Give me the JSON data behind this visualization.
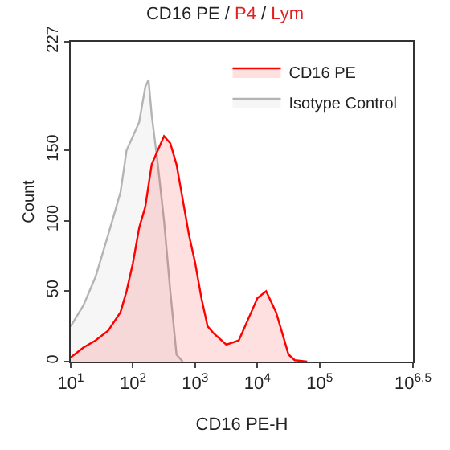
{
  "chart_data": {
    "type": "area",
    "title": "CD16 PE / P4 / Lym",
    "xlabel": "CD16 PE-H",
    "ylabel": "Count",
    "log": "x",
    "xlim": [
      10,
      3162278
    ],
    "ylim": [
      0,
      227
    ],
    "xticks": [
      {
        "value": 10,
        "label": "10$^{1}$"
      },
      {
        "value": 100,
        "label": "10$^{2}$"
      },
      {
        "value": 1000,
        "label": "10$^{3}$"
      },
      {
        "value": 10000,
        "label": "10$^{4}$"
      },
      {
        "value": 100000,
        "label": "10$^{5}$"
      },
      {
        "value": 3162278,
        "label": "10$^{6.5}$"
      }
    ],
    "yticks": [
      0,
      50,
      100,
      150,
      227
    ],
    "legend": "top right",
    "series": [
      {
        "name": "CD16 PE",
        "color": "#ff0000",
        "x": [
          10,
          16,
          25,
          40,
          63,
          79,
          100,
          126,
          158,
          200,
          251,
          316,
          398,
          501,
          631,
          794,
          1000,
          1259,
          1585,
          1995,
          3162,
          5012,
          6310,
          7943,
          10000,
          13804,
          19953,
          25119,
          31623,
          39811,
          63096
        ],
        "values": [
          3,
          10,
          15,
          22,
          35,
          50,
          70,
          95,
          110,
          140,
          150,
          160,
          155,
          140,
          115,
          90,
          70,
          45,
          25,
          20,
          12,
          15,
          25,
          35,
          45,
          50,
          35,
          20,
          5,
          1,
          0
        ]
      },
      {
        "name": "Isotype Control",
        "color": "#b4b4b4",
        "x": [
          10,
          16,
          25,
          40,
          63,
          79,
          100,
          126,
          158,
          178,
          200,
          251,
          316,
          398,
          501,
          631
        ],
        "values": [
          25,
          40,
          60,
          90,
          120,
          150,
          160,
          170,
          195,
          200,
          175,
          140,
          100,
          50,
          5,
          0
        ]
      }
    ]
  }
}
